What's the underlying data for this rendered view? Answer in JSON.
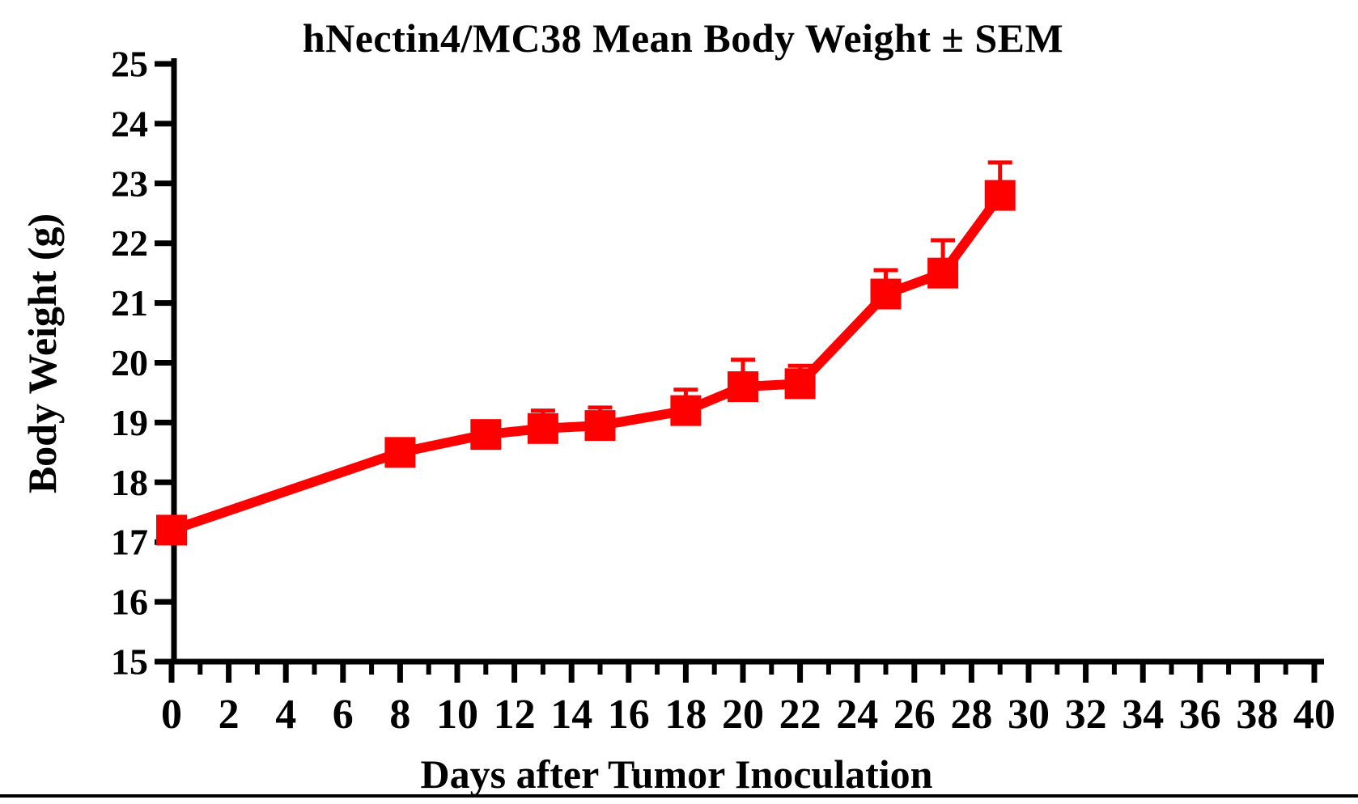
{
  "page": {
    "background_color": "#ffffff",
    "bottom_rule_color": "#000000",
    "text_color": "#000000"
  },
  "chart_data": {
    "type": "line",
    "title": "hNectin4/MC38 Mean Body Weight ± SEM",
    "xlabel": "Days after Tumor Inoculation",
    "ylabel": "Body Weight (g)",
    "xlim": [
      0,
      40
    ],
    "ylim": [
      15,
      25
    ],
    "x_major_tick_step": 2,
    "x_minor_tick_step": 1,
    "y_tick_step": 1,
    "x_tick_labels": [
      "0",
      "2",
      "4",
      "6",
      "8",
      "10",
      "12",
      "14",
      "16",
      "18",
      "20",
      "22",
      "24",
      "26",
      "28",
      "30",
      "32",
      "34",
      "36",
      "38",
      "40"
    ],
    "y_tick_labels": [
      "15",
      "16",
      "17",
      "18",
      "19",
      "20",
      "21",
      "22",
      "23",
      "24",
      "25"
    ],
    "grid": false,
    "legend": "none",
    "axis_color": "#000000",
    "series": [
      {
        "name": "hNectin4/MC38 mean body weight",
        "color": "#ff0000",
        "marker": "filled-square",
        "error_bars": "SEM, upper caps only",
        "x": [
          0,
          8,
          11,
          13,
          15,
          18,
          20,
          22,
          25,
          27,
          29
        ],
        "y": [
          17.2,
          18.5,
          18.8,
          18.9,
          18.95,
          19.2,
          19.6,
          19.65,
          21.15,
          21.5,
          22.8
        ],
        "sem_upper": [
          0,
          0,
          0,
          0.3,
          0.3,
          0.35,
          0.45,
          0.3,
          0.4,
          0.55,
          0.55
        ]
      }
    ]
  }
}
